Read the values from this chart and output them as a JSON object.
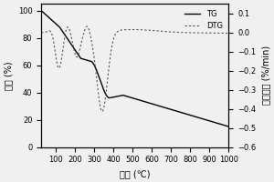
{
  "title": "",
  "xlabel": "温度 (℃)",
  "ylabel_left": "失重 (%)",
  "ylabel_right": "失重速率 (%/min)",
  "xlim": [
    25,
    1000
  ],
  "ylim_left": [
    0,
    105
  ],
  "ylim_right": [
    -0.6,
    0.15
  ],
  "legend_labels": [
    "TG",
    "DTG"
  ],
  "background_color": "#f0f0f0",
  "line_color_tg": "#000000",
  "line_color_dtg": "#555555",
  "fontsize": 7,
  "xticks": [
    100,
    200,
    300,
    400,
    500,
    600,
    700,
    800,
    900,
    1000
  ],
  "yticks_left": [
    0,
    20,
    40,
    60,
    80,
    100
  ],
  "yticks_right": [
    0.1,
    0.0,
    -0.1,
    -0.2,
    -0.3,
    -0.4,
    -0.5,
    -0.6
  ]
}
